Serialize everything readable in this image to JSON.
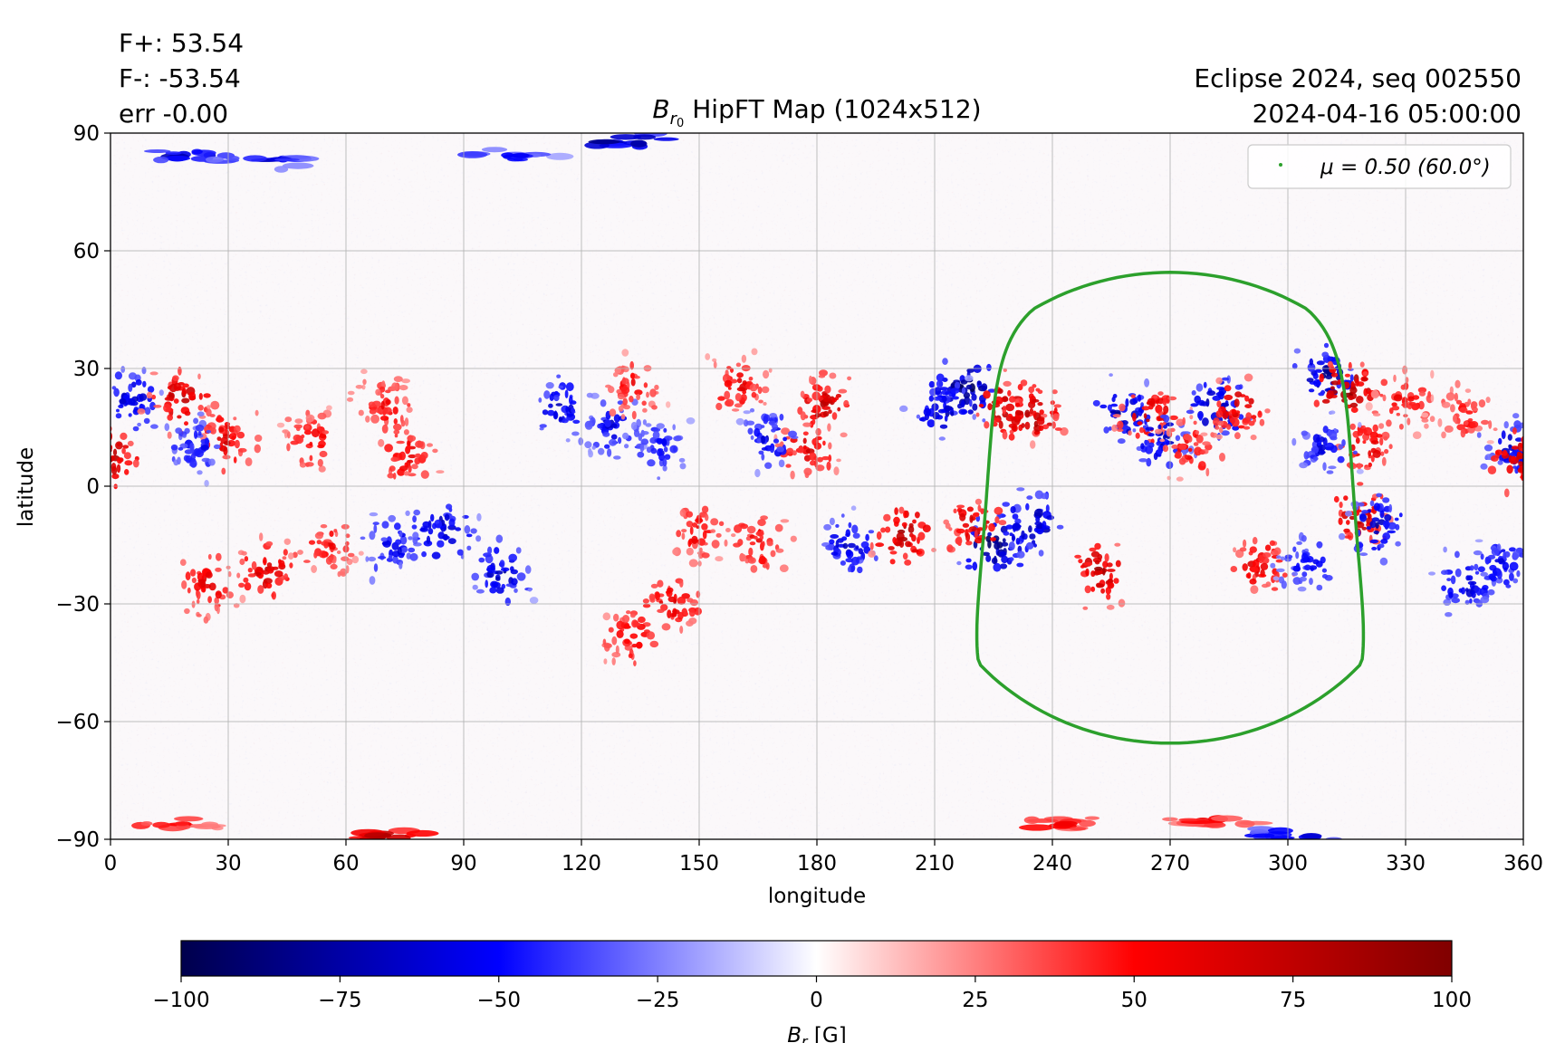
{
  "stats": {
    "fplus": "F+: 53.54",
    "fminus": "F-: -53.54",
    "err": "err -0.00"
  },
  "header_right": {
    "line1": "Eclipse 2024, seq 002550",
    "line2": "2024-04-16 05:00:00"
  },
  "chart_data": {
    "type": "heatmap",
    "title_main": "B",
    "title_sub": "r",
    "title_subsub": "0",
    "title_rest": " HipFT Map (1024x512)",
    "xlabel": "longitude",
    "ylabel": "latitude",
    "xlim": [
      0,
      360
    ],
    "ylim": [
      -90,
      90
    ],
    "xticks": [
      0,
      30,
      60,
      90,
      120,
      150,
      180,
      210,
      240,
      270,
      300,
      330,
      360
    ],
    "yticks": [
      90,
      60,
      30,
      0,
      -30,
      -60,
      -90
    ],
    "ytick_labels": [
      "90",
      "60",
      "30",
      "0",
      "−30",
      "−60",
      "−90"
    ],
    "grid": true,
    "legend": {
      "location": "top-right",
      "label": "μ = 0.50 (60.0°)",
      "color": "#2ca02c"
    },
    "mu_contour": {
      "center_lon": 270,
      "center_lat": -5.5,
      "radius_deg": 60,
      "color": "#2ca02c"
    },
    "colorbar": {
      "label_main": "B",
      "label_sub": "r",
      "label_unit": " [G]",
      "colormap": "seismic",
      "vmin": -100,
      "vmax": 100,
      "ticks": [
        "−100",
        "−75",
        "−50",
        "−25",
        "0",
        "25",
        "50",
        "75",
        "100"
      ],
      "tick_values": [
        -100,
        -75,
        -50,
        -25,
        0,
        25,
        50,
        75,
        100
      ],
      "colors": [
        "#00004c",
        "#0000ff",
        "#ffffff",
        "#ff0000",
        "#800000"
      ]
    },
    "flux_regions": [
      {
        "lon": 5,
        "lat": 22,
        "value": -70
      },
      {
        "lon": 18,
        "lat": 22,
        "value": 75
      },
      {
        "lon": 30,
        "lat": 12,
        "value": 65
      },
      {
        "lon": 22,
        "lat": 10,
        "value": -55
      },
      {
        "lon": 52,
        "lat": 12,
        "value": 55
      },
      {
        "lon": 70,
        "lat": 20,
        "value": 55
      },
      {
        "lon": 75,
        "lat": 8,
        "value": 60
      },
      {
        "lon": 0,
        "lat": 7,
        "value": 80
      },
      {
        "lon": 40,
        "lat": -22,
        "value": 70
      },
      {
        "lon": 25,
        "lat": -25,
        "value": 60
      },
      {
        "lon": 55,
        "lat": -15,
        "value": 55
      },
      {
        "lon": 85,
        "lat": -12,
        "value": -75
      },
      {
        "lon": 72,
        "lat": -15,
        "value": -60
      },
      {
        "lon": 100,
        "lat": -22,
        "value": -70
      },
      {
        "lon": 115,
        "lat": 20,
        "value": -65
      },
      {
        "lon": 128,
        "lat": 15,
        "value": -60
      },
      {
        "lon": 133,
        "lat": 25,
        "value": 55
      },
      {
        "lon": 140,
        "lat": 10,
        "value": -55
      },
      {
        "lon": 160,
        "lat": 25,
        "value": 60
      },
      {
        "lon": 182,
        "lat": 20,
        "value": 75
      },
      {
        "lon": 178,
        "lat": 10,
        "value": 65
      },
      {
        "lon": 168,
        "lat": 12,
        "value": -60
      },
      {
        "lon": 150,
        "lat": -12,
        "value": 55
      },
      {
        "lon": 143,
        "lat": -30,
        "value": 65
      },
      {
        "lon": 133,
        "lat": -38,
        "value": 60
      },
      {
        "lon": 165,
        "lat": -15,
        "value": 60
      },
      {
        "lon": 188,
        "lat": -15,
        "value": -65
      },
      {
        "lon": 202,
        "lat": -12,
        "value": 80
      },
      {
        "lon": 218,
        "lat": 25,
        "value": -90
      },
      {
        "lon": 228,
        "lat": 20,
        "value": 85
      },
      {
        "lon": 235,
        "lat": 18,
        "value": 80
      },
      {
        "lon": 212,
        "lat": 20,
        "value": -75
      },
      {
        "lon": 225,
        "lat": -15,
        "value": -90
      },
      {
        "lon": 235,
        "lat": -10,
        "value": -80
      },
      {
        "lon": 220,
        "lat": -10,
        "value": 70
      },
      {
        "lon": 252,
        "lat": -22,
        "value": 80
      },
      {
        "lon": 258,
        "lat": 18,
        "value": -75
      },
      {
        "lon": 265,
        "lat": 18,
        "value": 70
      },
      {
        "lon": 268,
        "lat": 12,
        "value": -70
      },
      {
        "lon": 275,
        "lat": 10,
        "value": 60
      },
      {
        "lon": 282,
        "lat": 20,
        "value": -80
      },
      {
        "lon": 288,
        "lat": 20,
        "value": 70
      },
      {
        "lon": 310,
        "lat": 28,
        "value": -80
      },
      {
        "lon": 315,
        "lat": 24,
        "value": 90
      },
      {
        "lon": 320,
        "lat": 10,
        "value": 65
      },
      {
        "lon": 310,
        "lat": 10,
        "value": -60
      },
      {
        "lon": 318,
        "lat": -8,
        "value": 75
      },
      {
        "lon": 323,
        "lat": -10,
        "value": -70
      },
      {
        "lon": 293,
        "lat": -20,
        "value": 65
      },
      {
        "lon": 305,
        "lat": -20,
        "value": -55
      },
      {
        "lon": 345,
        "lat": -25,
        "value": -65
      },
      {
        "lon": 355,
        "lat": -20,
        "value": -60
      },
      {
        "lon": 358,
        "lat": 10,
        "value": -70
      },
      {
        "lon": 360,
        "lat": 7,
        "value": 75
      },
      {
        "lon": 330,
        "lat": 22,
        "value": 55
      },
      {
        "lon": 345,
        "lat": 18,
        "value": 50
      },
      {
        "lon": 20,
        "lat": 84,
        "value": -75
      },
      {
        "lon": 40,
        "lat": 83,
        "value": -65
      },
      {
        "lon": 130,
        "lat": 88,
        "value": -90
      },
      {
        "lon": 100,
        "lat": 84,
        "value": -55
      },
      {
        "lon": 70,
        "lat": -89,
        "value": 95
      },
      {
        "lon": 15,
        "lat": -86,
        "value": 60
      },
      {
        "lon": 240,
        "lat": -86,
        "value": 65
      },
      {
        "lon": 280,
        "lat": -85,
        "value": 55
      },
      {
        "lon": 300,
        "lat": -89,
        "value": -70
      }
    ]
  }
}
